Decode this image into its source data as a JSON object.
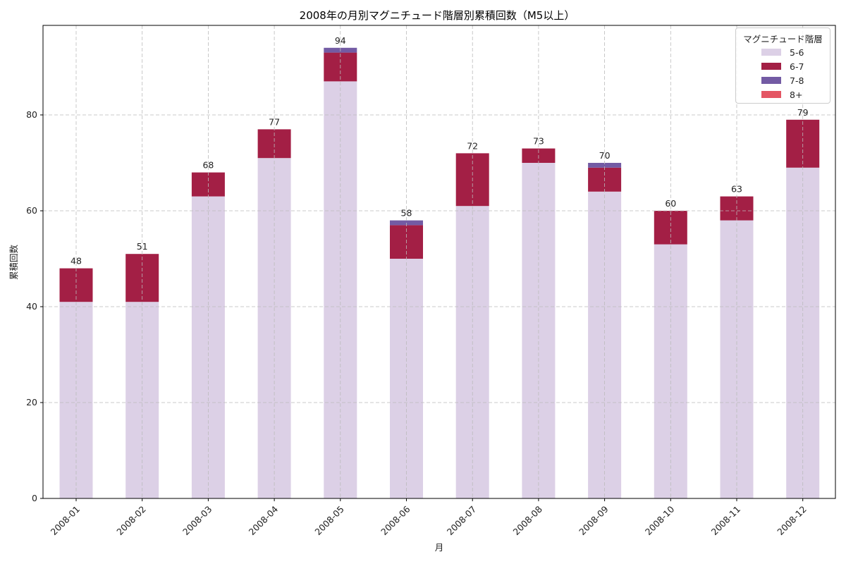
{
  "chart_data": {
    "type": "bar",
    "stacked": true,
    "title": "2008年の月別マグニチュード階層別累積回数（M5以上）",
    "xlabel": "月",
    "ylabel": "累積回数",
    "categories": [
      "2008-01",
      "2008-02",
      "2008-03",
      "2008-04",
      "2008-05",
      "2008-06",
      "2008-07",
      "2008-08",
      "2008-09",
      "2008-10",
      "2008-11",
      "2008-12"
    ],
    "series": [
      {
        "name": "5-6",
        "color": "#dcd0e6",
        "values": [
          41,
          41,
          63,
          71,
          87,
          50,
          61,
          70,
          64,
          53,
          58,
          69
        ]
      },
      {
        "name": "6-7",
        "color": "#a31f45",
        "values": [
          7,
          10,
          5,
          6,
          6,
          7,
          11,
          3,
          5,
          7,
          5,
          10
        ]
      },
      {
        "name": "7-8",
        "color": "#735ba4",
        "values": [
          0,
          0,
          0,
          0,
          1,
          1,
          0,
          0,
          1,
          0,
          0,
          0
        ]
      },
      {
        "name": "8+",
        "color": "#e45563",
        "values": [
          0,
          0,
          0,
          0,
          0,
          0,
          0,
          0,
          0,
          0,
          0,
          0
        ]
      }
    ],
    "totals": [
      48,
      51,
      68,
      77,
      94,
      58,
      72,
      73,
      70,
      60,
      63,
      79
    ],
    "yticks": [
      0,
      20,
      40,
      60,
      80
    ],
    "ylim": [
      0,
      98.7
    ],
    "grid": true,
    "legend": {
      "title": "マグニチュード階層",
      "position": "upper right"
    }
  }
}
